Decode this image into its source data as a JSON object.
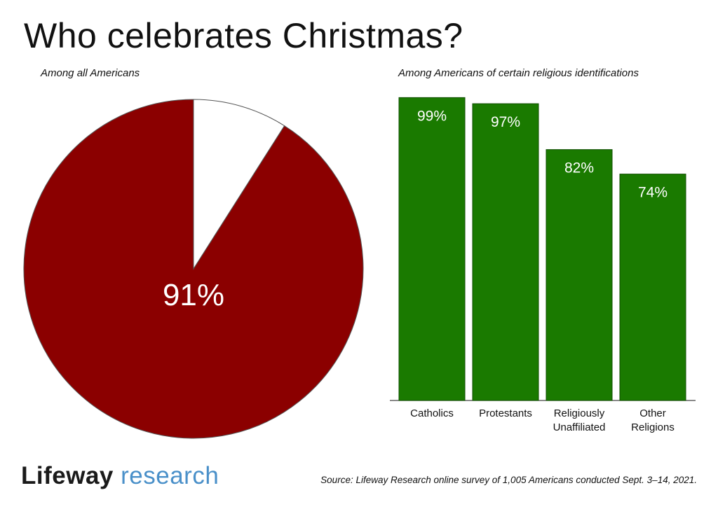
{
  "title": "Who celebrates Christmas?",
  "colors": {
    "pie": "#8b0000",
    "bar": "#1a7a00",
    "brand_accent": "#4a90c9"
  },
  "chart_data": [
    {
      "type": "pie",
      "subtitle": "Among all Americans",
      "slices": [
        {
          "label": "91%",
          "value": 91,
          "color": "#8b0000"
        },
        {
          "label": "",
          "value": 9,
          "color": "#ffffff"
        }
      ]
    },
    {
      "type": "bar",
      "subtitle": "Among Americans of certain religious identifications",
      "categories": [
        [
          "Catholics"
        ],
        [
          "Protestants"
        ],
        [
          "Religiously",
          "Unaffiliated"
        ],
        [
          "Other",
          "Religions"
        ]
      ],
      "values": [
        99,
        97,
        82,
        74
      ],
      "value_labels": [
        "99%",
        "97%",
        "82%",
        "74%"
      ],
      "ylim": [
        0,
        100
      ]
    }
  ],
  "footer": {
    "brand_part1": "Lifeway",
    "brand_part2": "research",
    "source": "Source: Lifeway Research online survey of 1,005 Americans conducted Sept. 3–14, 2021."
  }
}
